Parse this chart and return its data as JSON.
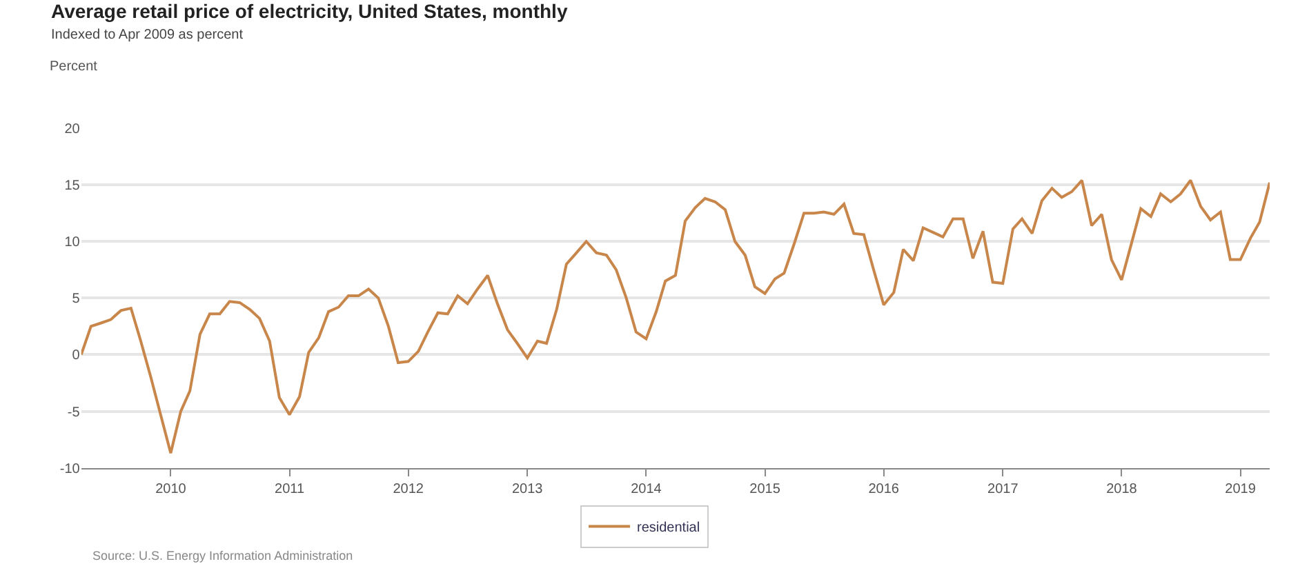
{
  "chart_data": {
    "type": "line",
    "title": "Average retail price of electricity, United States, monthly",
    "subtitle": "Indexed to Apr 2009 as percent",
    "ylabel": "Percent",
    "x": [
      "2009-04",
      "2009-05",
      "2009-06",
      "2009-07",
      "2009-08",
      "2009-09",
      "2009-10",
      "2009-11",
      "2009-12",
      "2010-01",
      "2010-02",
      "2010-03",
      "2010-04",
      "2010-05",
      "2010-06",
      "2010-07",
      "2010-08",
      "2010-09",
      "2010-10",
      "2010-11",
      "2010-12",
      "2011-01",
      "2011-02",
      "2011-03",
      "2011-04",
      "2011-05",
      "2011-06",
      "2011-07",
      "2011-08",
      "2011-09",
      "2011-10",
      "2011-11",
      "2011-12",
      "2012-01",
      "2012-02",
      "2012-03",
      "2012-04",
      "2012-05",
      "2012-06",
      "2012-07",
      "2012-08",
      "2012-09",
      "2012-10",
      "2012-11",
      "2012-12",
      "2013-01",
      "2013-02",
      "2013-03",
      "2013-04",
      "2013-05",
      "2013-06",
      "2013-07",
      "2013-08",
      "2013-09",
      "2013-10",
      "2013-11",
      "2013-12",
      "2014-01",
      "2014-02",
      "2014-03",
      "2014-04",
      "2014-05",
      "2014-06",
      "2014-07",
      "2014-08",
      "2014-09",
      "2014-10",
      "2014-11",
      "2014-12",
      "2015-01",
      "2015-02",
      "2015-03",
      "2015-04",
      "2015-05",
      "2015-06",
      "2015-07",
      "2015-08",
      "2015-09",
      "2015-10",
      "2015-11",
      "2015-12",
      "2016-01",
      "2016-02",
      "2016-03",
      "2016-04",
      "2016-05",
      "2016-06",
      "2016-07",
      "2016-08",
      "2016-09",
      "2016-10",
      "2016-11",
      "2016-12",
      "2017-01",
      "2017-02",
      "2017-03",
      "2017-04",
      "2017-05",
      "2017-06",
      "2017-07",
      "2017-08",
      "2017-09",
      "2017-10",
      "2017-11",
      "2017-12",
      "2018-01",
      "2018-02",
      "2018-03",
      "2018-04",
      "2018-05",
      "2018-06",
      "2018-07",
      "2018-08",
      "2018-09",
      "2018-10",
      "2018-11",
      "2018-12",
      "2019-01",
      "2019-02",
      "2019-03",
      "2019-04"
    ],
    "series": [
      {
        "name": "residential",
        "color": "#c8864a",
        "values": [
          0,
          2.5,
          2.8,
          3.1,
          3.9,
          4.1,
          1.2,
          -2,
          -5.3,
          -8.7,
          -5,
          -3.2,
          1.8,
          3.6,
          3.6,
          4.7,
          4.6,
          4,
          3.2,
          1.2,
          -3.8,
          -5.3,
          -3.7,
          0.2,
          1.5,
          3.8,
          4.2,
          5.2,
          5.2,
          5.8,
          5,
          2.5,
          -0.7,
          -0.6,
          0.3,
          2,
          3.7,
          3.6,
          5.2,
          4.5,
          5.8,
          7,
          4.5,
          2.2,
          1,
          -0.3,
          1.2,
          1,
          4,
          8,
          9,
          10,
          9,
          8.8,
          7.5,
          5,
          2,
          1.4,
          3.8,
          6.5,
          7,
          11.8,
          13,
          13.8,
          13.5,
          12.8,
          10,
          8.8,
          6,
          5.4,
          6.7,
          7.2,
          9.8,
          12.5,
          12.5,
          12.6,
          12.4,
          13.3,
          10.7,
          10.6,
          7.5,
          4.4,
          5.5,
          9.3,
          8.3,
          11.2,
          10.8,
          10.4,
          12,
          12,
          8.5,
          10.9,
          6.4,
          6.3,
          11.1,
          12,
          10.7,
          13.6,
          14.7,
          13.9,
          14.4,
          15.4,
          11.4,
          12.4,
          8.4,
          6.6,
          9.9,
          12.9,
          12.2,
          14.2,
          13.5,
          14.2,
          15.4,
          13.1,
          11.9,
          12.6,
          8.4,
          8.4,
          10.3,
          11.7,
          15.2
        ]
      }
    ],
    "xlim": [
      "2009-04-01",
      "2019-04-01"
    ],
    "xticks": [
      {
        "value": "2010-01-01",
        "label": "2010"
      },
      {
        "value": "2011-01-01",
        "label": "2011"
      },
      {
        "value": "2012-01-01",
        "label": "2012"
      },
      {
        "value": "2013-01-01",
        "label": "2013"
      },
      {
        "value": "2014-01-01",
        "label": "2014"
      },
      {
        "value": "2015-01-01",
        "label": "2015"
      },
      {
        "value": "2016-01-01",
        "label": "2016"
      },
      {
        "value": "2017-01-01",
        "label": "2017"
      },
      {
        "value": "2018-01-01",
        "label": "2018"
      },
      {
        "value": "2019-01-01",
        "label": "2019"
      }
    ],
    "ylim": [
      -10,
      20
    ],
    "yticks": [
      -10,
      -5,
      0,
      5,
      10,
      15,
      20
    ],
    "grid": "y",
    "legend": "bottom",
    "marker": "none",
    "line_style": "solid",
    "annotations": [
      "Source: U.S. Energy Information Administration"
    ]
  }
}
